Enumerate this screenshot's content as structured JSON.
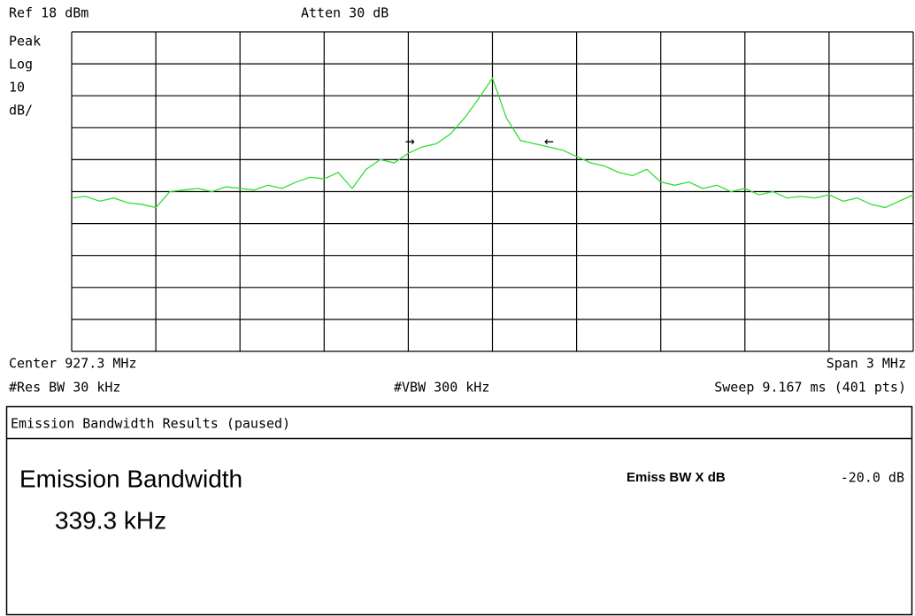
{
  "header": {
    "ref": "Ref 18 dBm",
    "atten": "Atten 30 dB"
  },
  "scale": [
    "Peak",
    "Log",
    "10",
    "dB/"
  ],
  "chart_data": {
    "type": "line",
    "x": [
      925.8,
      925.85,
      925.9,
      925.95,
      926.0,
      926.05,
      926.1,
      926.15,
      926.2,
      926.25,
      926.3,
      926.35,
      926.4,
      926.45,
      926.5,
      926.55,
      926.6,
      926.65,
      926.7,
      926.75,
      926.8,
      926.85,
      926.9,
      926.95,
      927.0,
      927.05,
      927.1,
      927.15,
      927.2,
      927.25,
      927.3,
      927.35,
      927.4,
      927.45,
      927.5,
      927.55,
      927.6,
      927.65,
      927.7,
      927.75,
      927.8,
      927.85,
      927.9,
      927.95,
      928.0,
      928.05,
      928.1,
      928.15,
      928.2,
      928.25,
      928.3,
      928.35,
      928.4,
      928.45,
      928.5,
      928.55,
      928.6,
      928.65,
      928.7,
      928.75,
      928.8
    ],
    "series": [
      {
        "color": "#33dd33",
        "values": [
          -34,
          -33.5,
          -35,
          -34,
          -35.5,
          -36,
          -37,
          -32,
          -31.5,
          -31,
          -32,
          -30.5,
          -31,
          -31.5,
          -30,
          -31,
          -29,
          -27.5,
          -28,
          -26,
          -31,
          -25,
          -22,
          -23,
          -20,
          -18,
          -17,
          -14,
          -9,
          -3,
          3.5,
          -9,
          -16,
          -17,
          -18,
          -19,
          -21,
          -23,
          -24,
          -26,
          -27,
          -25,
          -29,
          -30,
          -29,
          -31,
          -30,
          -32,
          -31,
          -33,
          -32,
          -34,
          -33.5,
          -34,
          -33,
          -35,
          -34,
          -36,
          -37,
          -35,
          -33
        ]
      }
    ],
    "xlim": [
      925.8,
      928.8
    ],
    "ylim": [
      -82,
      18
    ],
    "xticks": [
      925.8,
      926.1,
      926.4,
      926.7,
      927.0,
      927.3,
      927.6,
      927.9,
      928.2,
      928.5,
      928.8
    ],
    "yticks": [
      -82,
      -72,
      -62,
      -52,
      -42,
      -32,
      -22,
      -12,
      -2,
      8,
      18
    ],
    "grid": true
  },
  "footer": {
    "center": "Center 927.3 MHz",
    "span": "Span 3 MHz",
    "rbw": "#Res BW 30 kHz",
    "vbw": "#VBW 300 kHz",
    "sweep": "Sweep 9.167 ms (401 pts)"
  },
  "results": {
    "title": "Emission Bandwidth Results (paused)",
    "measurement": "Emission Bandwidth",
    "value": "339.3 kHz",
    "param_label": "Emiss BW X dB",
    "param_value": "-20.0 dB"
  }
}
